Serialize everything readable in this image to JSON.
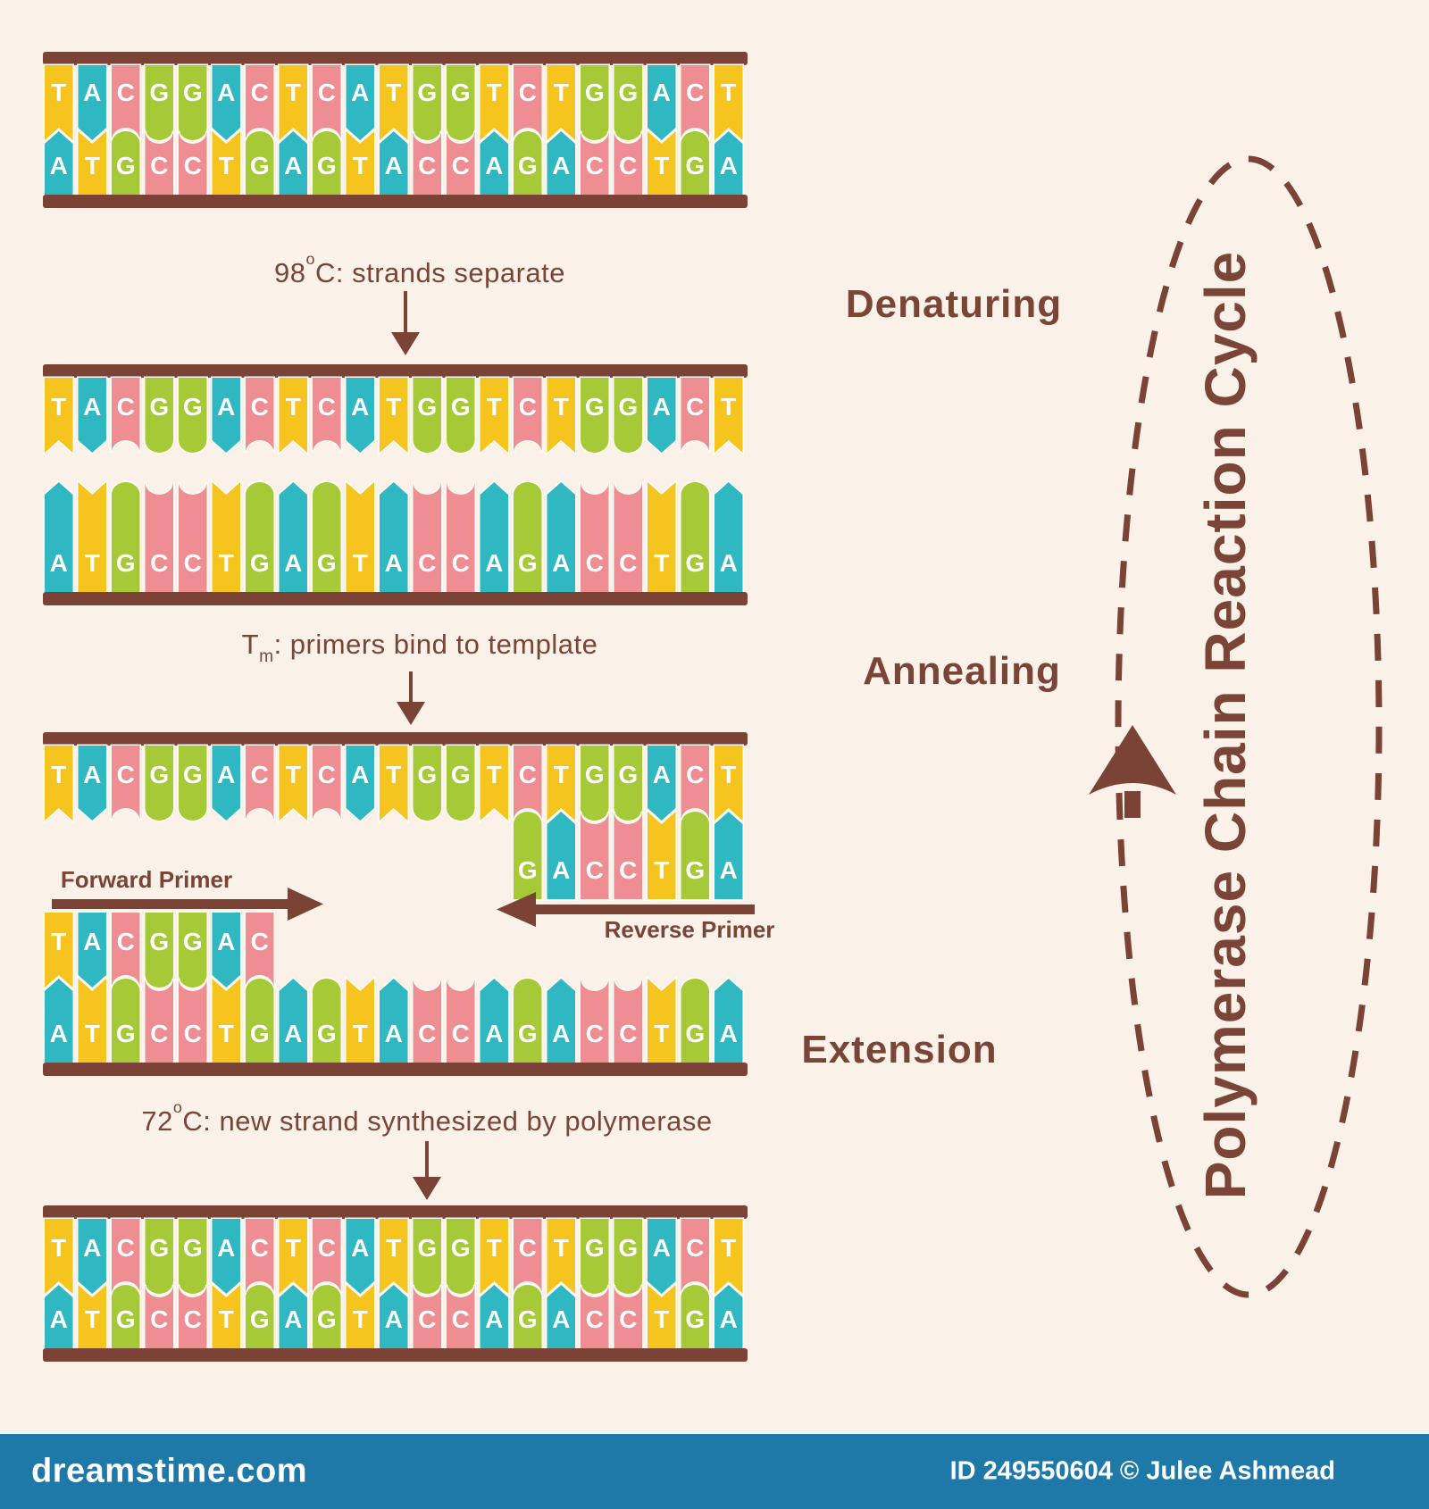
{
  "cycle_title": "Polymerase Chain Reaction Cycle",
  "stages": [
    {
      "label": "Denaturing",
      "caption": {
        "pre": "98",
        "sup": "o",
        "rest": "C: strands separate"
      }
    },
    {
      "label": "Annealing",
      "caption": {
        "pre": "T",
        "sub": "m",
        "rest": ": primers bind to template"
      }
    },
    {
      "label": "Extension",
      "caption": {
        "pre": "72",
        "sup": "o",
        "rest": "C: new strand synthesized by polymerase"
      }
    }
  ],
  "strands": {
    "template_top": "TACGGACTCATGGTCTGGACT",
    "template_bottom": "ATGCCTGAGTACCAGACCTGA"
  },
  "primers": {
    "forward_label": "Forward Primer",
    "forward_seq": "TACGGAC",
    "reverse_label": "Reverse Primer",
    "reverse_seq": "GACCTGA"
  },
  "sections": [
    {
      "id": "initial-duplex",
      "top": "TACGGACTCATGGTCTGGACT",
      "bottom": "ATGCCTGAGTACCAGACCTGA"
    },
    {
      "id": "denatured-strands",
      "top": "TACGGACTCATGGTCTGGACT",
      "bottom": "ATGCCTGAGTACCAGACCTGA"
    },
    {
      "id": "annealing",
      "top": "TACGGACTCATGGTCTGGACT",
      "reverse_primer": "GACCTGA",
      "forward_primer": "TACGGAC",
      "bottom": "ATGCCTGAGTACCAGACCTGA"
    },
    {
      "id": "extended-duplex",
      "top": "TACGGACTCATGGTCTGGACT",
      "bottom": "ATGCCTGAGTACCAGACCTGA"
    }
  ],
  "base_colors": {
    "T": "#f5c41e",
    "A": "#2fb8c1",
    "C": "#ee8e93",
    "G": "#a5c937"
  },
  "theme": {
    "background": "#faf1e8",
    "brown": "#7a4336",
    "label_brown": "#7a4437",
    "letter": "#ffffff",
    "watermark_bar": "#1e78a8"
  },
  "watermark": {
    "site": "dreamstime.com",
    "credit": "ID 249550604 © Julee Ashmead"
  }
}
